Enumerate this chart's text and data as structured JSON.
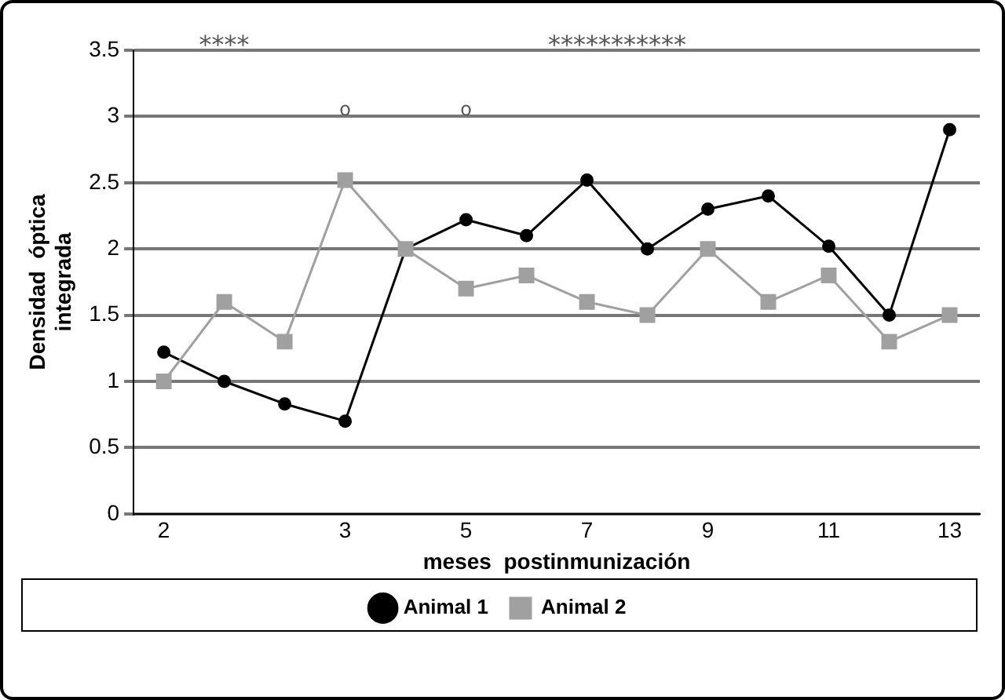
{
  "chart_data": {
    "type": "line",
    "xlabel": "meses  postinmunización",
    "ylabel": "Densidad  óptica integrada",
    "categories": [
      "2",
      null,
      null,
      "3",
      null,
      "5",
      null,
      "7",
      null,
      "9",
      null,
      "11",
      null,
      "13"
    ],
    "series": [
      {
        "name": "Animal 1",
        "color": "#000000",
        "marker": "circle",
        "values": [
          1.22,
          1.0,
          0.83,
          0.7,
          2.0,
          2.22,
          2.1,
          2.52,
          2.0,
          2.3,
          2.4,
          2.02,
          1.5,
          2.9
        ]
      },
      {
        "name": "Animal 2",
        "color": "#a0a0a0",
        "marker": "square",
        "values": [
          1.0,
          1.6,
          1.3,
          2.52,
          2.0,
          1.7,
          1.8,
          1.6,
          1.5,
          2.0,
          1.6,
          1.8,
          1.3,
          1.5
        ]
      }
    ],
    "ylim": [
      0,
      3.5
    ],
    "yticks": [
      0,
      0.5,
      1,
      1.5,
      2,
      2.5,
      3,
      3.5
    ],
    "grid": "y",
    "legend": "bottom",
    "line_style": "solid",
    "annotations": [
      "****",
      "***********",
      "o",
      "o"
    ]
  }
}
